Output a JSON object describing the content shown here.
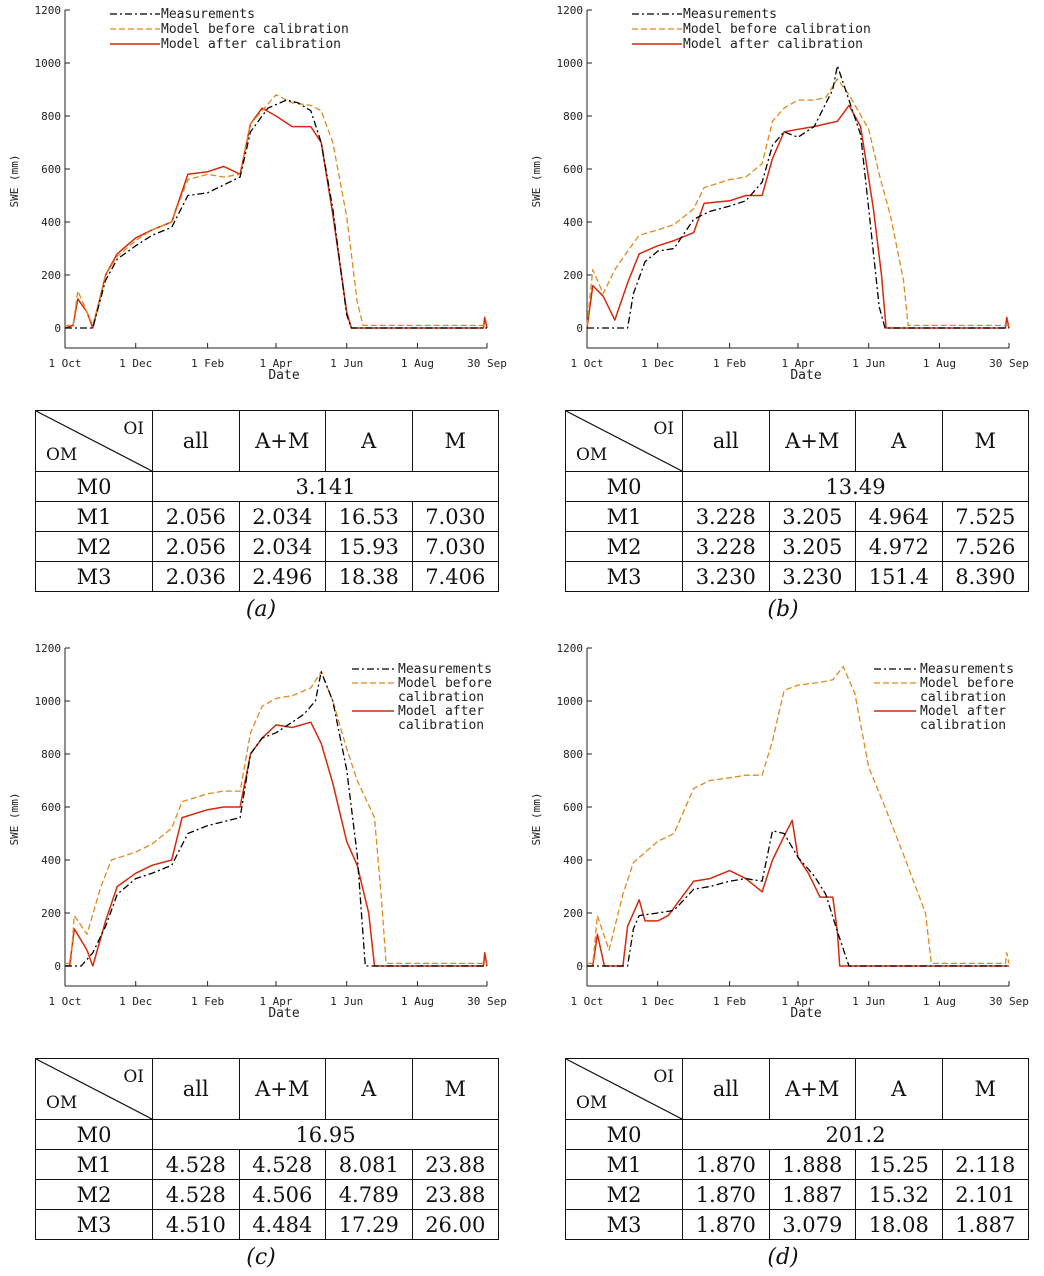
{
  "chart_data": [
    {
      "type": "line",
      "caption": "(a)",
      "xlabel": "Date",
      "ylabel": "SWE (mm)",
      "ylim": [
        0,
        1200
      ],
      "yticks": [
        0,
        200,
        400,
        600,
        800,
        1000,
        1200
      ],
      "xticks": [
        "1 Oct",
        "1 Dec",
        "1 Feb",
        "1 Apr",
        "1 Jun",
        "1 Aug",
        "30 Sep"
      ],
      "legend": "top",
      "series": [
        {
          "name": "Measurements",
          "style": "dashdot",
          "color": "#000000",
          "x": [
            "1 Oct",
            "10 Oct",
            "25 Oct",
            "5 Nov",
            "15 Nov",
            "1 Dec",
            "15 Dec",
            "1 Jan",
            "15 Jan",
            "1 Feb",
            "15 Feb",
            "1 Mar",
            "10 Mar",
            "25 Mar",
            "10 Apr",
            "20 Apr",
            "1 May",
            "10 May",
            "20 May",
            "1 Jun",
            "5 Jun",
            "15 Jun",
            "30 Sep"
          ],
          "y": [
            0,
            0,
            0,
            180,
            260,
            310,
            350,
            380,
            500,
            510,
            540,
            570,
            740,
            830,
            860,
            850,
            820,
            700,
            450,
            50,
            0,
            0,
            0
          ]
        },
        {
          "name": "Model before calibration",
          "style": "dashed",
          "color": "#e08a1e",
          "x": [
            "1 Oct",
            "8 Oct",
            "12 Oct",
            "20 Oct",
            "25 Oct",
            "5 Nov",
            "15 Nov",
            "1 Dec",
            "15 Dec",
            "1 Jan",
            "15 Jan",
            "1 Feb",
            "15 Feb",
            "1 Mar",
            "10 Mar",
            "20 Mar",
            "1 Apr",
            "15 Apr",
            "1 May",
            "10 May",
            "20 May",
            "1 Jun",
            "10 Jun",
            "15 Jun",
            "30 Sep"
          ],
          "y": [
            10,
            10,
            140,
            60,
            10,
            200,
            270,
            330,
            370,
            400,
            560,
            580,
            570,
            580,
            770,
            820,
            880,
            850,
            840,
            820,
            700,
            420,
            100,
            10,
            10
          ]
        },
        {
          "name": "Model after calibration",
          "style": "solid",
          "color": "#d42a0c",
          "x": [
            "1 Oct",
            "8 Oct",
            "12 Oct",
            "20 Oct",
            "25 Oct",
            "5 Nov",
            "15 Nov",
            "1 Dec",
            "15 Dec",
            "1 Jan",
            "15 Jan",
            "1 Feb",
            "15 Feb",
            "1 Mar",
            "10 Mar",
            "20 Mar",
            "1 Apr",
            "15 Apr",
            "1 May",
            "10 May",
            "20 May",
            "1 Jun",
            "5 Jun",
            "27 Sep",
            "28 Sep",
            "30 Sep"
          ],
          "y": [
            0,
            10,
            110,
            60,
            0,
            200,
            280,
            340,
            370,
            400,
            580,
            590,
            610,
            580,
            770,
            830,
            800,
            760,
            760,
            700,
            430,
            60,
            0,
            0,
            40,
            0
          ]
        }
      ]
    },
    {
      "type": "line",
      "caption": "(b)",
      "xlabel": "Date",
      "ylabel": "SWE (mm)",
      "ylim": [
        0,
        1200
      ],
      "yticks": [
        0,
        200,
        400,
        600,
        800,
        1000,
        1200
      ],
      "xticks": [
        "1 Oct",
        "1 Dec",
        "1 Feb",
        "1 Apr",
        "1 Jun",
        "1 Aug",
        "30 Sep"
      ],
      "legend": "top",
      "series": [
        {
          "name": "Measurements",
          "style": "dashdot",
          "color": "#000000",
          "x": [
            "1 Oct",
            "5 Nov",
            "10 Nov",
            "20 Nov",
            "1 Dec",
            "15 Dec",
            "1 Jan",
            "15 Jan",
            "1 Feb",
            "15 Feb",
            "1 Mar",
            "10 Mar",
            "20 Mar",
            "1 Apr",
            "15 Apr",
            "1 May",
            "5 May",
            "15 May",
            "25 May",
            "1 Jun",
            "10 Jun",
            "15 Jun",
            "30 Sep"
          ],
          "y": [
            0,
            0,
            130,
            250,
            290,
            300,
            410,
            440,
            460,
            480,
            550,
            690,
            740,
            720,
            760,
            900,
            990,
            860,
            730,
            450,
            80,
            0,
            0
          ]
        },
        {
          "name": "Model before calibration",
          "style": "dashed",
          "color": "#e08a1e",
          "x": [
            "1 Oct",
            "6 Oct",
            "15 Oct",
            "25 Oct",
            "5 Nov",
            "15 Nov",
            "1 Dec",
            "15 Dec",
            "1 Jan",
            "10 Jan",
            "1 Feb",
            "15 Feb",
            "1 Mar",
            "10 Mar",
            "20 Mar",
            "1 Apr",
            "15 Apr",
            "25 Apr",
            "5 May",
            "15 May",
            "1 Jun",
            "10 Jun",
            "20 Jun",
            "1 Jul",
            "5 Jul",
            "30 Sep"
          ],
          "y": [
            10,
            220,
            130,
            220,
            290,
            350,
            370,
            390,
            450,
            530,
            560,
            570,
            620,
            780,
            830,
            860,
            860,
            870,
            940,
            880,
            750,
            580,
            420,
            180,
            10,
            10
          ]
        },
        {
          "name": "Model after calibration",
          "style": "solid",
          "color": "#d42a0c",
          "x": [
            "1 Oct",
            "6 Oct",
            "15 Oct",
            "25 Oct",
            "5 Nov",
            "15 Nov",
            "1 Dec",
            "15 Dec",
            "1 Jan",
            "10 Jan",
            "1 Feb",
            "15 Feb",
            "1 Mar",
            "10 Mar",
            "20 Mar",
            "1 Apr",
            "15 Apr",
            "25 Apr",
            "5 May",
            "15 May",
            "25 May",
            "5 Jun",
            "12 Jun",
            "16 Jun",
            "27 Sep",
            "28 Sep",
            "30 Sep"
          ],
          "y": [
            0,
            160,
            120,
            30,
            170,
            280,
            310,
            330,
            360,
            470,
            480,
            500,
            500,
            640,
            740,
            750,
            760,
            770,
            780,
            840,
            760,
            450,
            200,
            0,
            0,
            40,
            0
          ]
        }
      ]
    },
    {
      "type": "line",
      "caption": "(c)",
      "xlabel": "Date",
      "ylabel": "SWE (mm)",
      "ylim": [
        0,
        1200
      ],
      "yticks": [
        0,
        200,
        400,
        600,
        800,
        1000,
        1200
      ],
      "xticks": [
        "1 Oct",
        "1 Dec",
        "1 Feb",
        "1 Apr",
        "1 Jun",
        "1 Aug",
        "30 Sep"
      ],
      "legend": "top-right",
      "series": [
        {
          "name": "Measurements",
          "style": "dashdot",
          "color": "#000000",
          "x": [
            "1 Oct",
            "15 Oct",
            "25 Oct",
            "5 Nov",
            "15 Nov",
            "1 Dec",
            "15 Dec",
            "1 Jan",
            "15 Jan",
            "1 Feb",
            "1 Mar",
            "10 Mar",
            "20 Mar",
            "1 Apr",
            "15 Apr",
            "25 Apr",
            "5 May",
            "10 May",
            "20 May",
            "1 Jun",
            "10 Jun",
            "17 Jun",
            "30 Sep"
          ],
          "y": [
            0,
            0,
            50,
            150,
            270,
            330,
            350,
            380,
            500,
            530,
            560,
            800,
            860,
            880,
            920,
            950,
            1000,
            1110,
            1000,
            740,
            420,
            0,
            0
          ]
        },
        {
          "name": "Model before calibration",
          "style": "dashed",
          "color": "#e08a1e",
          "x": [
            "1 Oct",
            "6 Oct",
            "9 Oct",
            "20 Oct",
            "1 Nov",
            "10 Nov",
            "1 Dec",
            "15 Dec",
            "1 Jan",
            "10 Jan",
            "1 Feb",
            "15 Feb",
            "1 Mar",
            "10 Mar",
            "20 Mar",
            "1 Apr",
            "15 Apr",
            "1 May",
            "10 May",
            "20 May",
            "1 Jun",
            "10 Jun",
            "25 Jun",
            "1 Jul",
            "5 Jul",
            "30 Sep"
          ],
          "y": [
            10,
            10,
            190,
            120,
            300,
            400,
            430,
            460,
            520,
            620,
            650,
            660,
            660,
            880,
            980,
            1010,
            1020,
            1050,
            1110,
            1000,
            820,
            700,
            560,
            250,
            10,
            10
          ]
        },
        {
          "name": "Model after calibration",
          "style": "solid",
          "color": "#d42a0c",
          "x": [
            "1 Oct",
            "5 Oct",
            "9 Oct",
            "20 Oct",
            "25 Oct",
            "5 Nov",
            "15 Nov",
            "1 Dec",
            "15 Dec",
            "1 Jan",
            "10 Jan",
            "1 Feb",
            "15 Feb",
            "1 Mar",
            "10 Mar",
            "20 Mar",
            "1 Apr",
            "15 Apr",
            "1 May",
            "10 May",
            "20 May",
            "1 Jun",
            "10 Jun",
            "20 Jun",
            "25 Jun",
            "27 Sep",
            "28 Sep",
            "30 Sep"
          ],
          "y": [
            0,
            0,
            140,
            60,
            0,
            170,
            300,
            350,
            380,
            400,
            560,
            590,
            600,
            600,
            800,
            860,
            910,
            900,
            920,
            840,
            690,
            470,
            380,
            200,
            0,
            0,
            50,
            0
          ]
        }
      ]
    },
    {
      "type": "line",
      "caption": "(d)",
      "xlabel": "Date",
      "ylabel": "SWE (mm)",
      "ylim": [
        0,
        1200
      ],
      "yticks": [
        0,
        200,
        400,
        600,
        800,
        1000,
        1200
      ],
      "xticks": [
        "1 Oct",
        "1 Dec",
        "1 Feb",
        "1 Apr",
        "1 Jun",
        "1 Aug",
        "30 Sep"
      ],
      "legend": "top-right",
      "series": [
        {
          "name": "Measurements",
          "style": "dashdot",
          "color": "#000000",
          "x": [
            "1 Oct",
            "5 Nov",
            "10 Nov",
            "15 Nov",
            "1 Dec",
            "15 Dec",
            "1 Jan",
            "15 Jan",
            "1 Feb",
            "15 Feb",
            "1 Mar",
            "10 Mar",
            "20 Mar",
            "1 Apr",
            "15 Apr",
            "25 Apr",
            "5 May",
            "15 May",
            "30 Sep"
          ],
          "y": [
            0,
            0,
            140,
            190,
            200,
            210,
            290,
            300,
            320,
            330,
            320,
            510,
            500,
            410,
            340,
            270,
            130,
            0,
            0
          ]
        },
        {
          "name": "Model before calibration",
          "style": "dashed",
          "color": "#e08a1e",
          "x": [
            "1 Oct",
            "6 Oct",
            "10 Oct",
            "20 Oct",
            "1 Nov",
            "10 Nov",
            "1 Dec",
            "15 Dec",
            "1 Jan",
            "15 Jan",
            "1 Feb",
            "15 Feb",
            "1 Mar",
            "10 Mar",
            "20 Mar",
            "1 Apr",
            "20 Apr",
            "1 May",
            "10 May",
            "20 May",
            "1 Jun",
            "15 Jun",
            "1 Jul",
            "20 Jul",
            "25 Jul",
            "27 Sep",
            "28 Sep",
            "30 Sep"
          ],
          "y": [
            10,
            10,
            190,
            60,
            270,
            390,
            470,
            500,
            670,
            700,
            710,
            720,
            720,
            850,
            1040,
            1060,
            1070,
            1080,
            1130,
            1030,
            750,
            600,
            420,
            200,
            10,
            10,
            50,
            10
          ]
        },
        {
          "name": "Model after calibration",
          "style": "solid",
          "color": "#d42a0c",
          "x": [
            "1 Oct",
            "6 Oct",
            "10 Oct",
            "16 Oct",
            "1 Nov",
            "5 Nov",
            "15 Nov",
            "20 Nov",
            "1 Dec",
            "10 Dec",
            "1 Jan",
            "15 Jan",
            "1 Feb",
            "15 Feb",
            "1 Mar",
            "10 Mar",
            "20 Mar",
            "27 Mar",
            "1 Apr",
            "10 Apr",
            "20 Apr",
            "1 May",
            "5 May",
            "7 May",
            "30 Sep"
          ],
          "y": [
            0,
            0,
            120,
            0,
            0,
            150,
            250,
            170,
            170,
            190,
            320,
            330,
            360,
            330,
            280,
            400,
            490,
            550,
            410,
            350,
            260,
            260,
            130,
            0,
            0
          ]
        }
      ]
    }
  ],
  "tables": [
    {
      "header": {
        "oi": "OI",
        "om": "OM",
        "cols": [
          "all",
          "A+M",
          "A",
          "M"
        ]
      },
      "m0": {
        "label": "M0",
        "value": "3.141"
      },
      "rows": [
        {
          "label": "M1",
          "values": [
            "2.056",
            "2.034",
            "16.53",
            "7.030"
          ]
        },
        {
          "label": "M2",
          "values": [
            "2.056",
            "2.034",
            "15.93",
            "7.030"
          ]
        },
        {
          "label": "M3",
          "values": [
            "2.036",
            "2.496",
            "18.38",
            "7.406"
          ]
        }
      ]
    },
    {
      "header": {
        "oi": "OI",
        "om": "OM",
        "cols": [
          "all",
          "A+M",
          "A",
          "M"
        ]
      },
      "m0": {
        "label": "M0",
        "value": "13.49"
      },
      "rows": [
        {
          "label": "M1",
          "values": [
            "3.228",
            "3.205",
            "4.964",
            "7.525"
          ]
        },
        {
          "label": "M2",
          "values": [
            "3.228",
            "3.205",
            "4.972",
            "7.526"
          ]
        },
        {
          "label": "M3",
          "values": [
            "3.230",
            "3.230",
            "151.4",
            "8.390"
          ]
        }
      ]
    },
    {
      "header": {
        "oi": "OI",
        "om": "OM",
        "cols": [
          "all",
          "A+M",
          "A",
          "M"
        ]
      },
      "m0": {
        "label": "M0",
        "value": "16.95"
      },
      "rows": [
        {
          "label": "M1",
          "values": [
            "4.528",
            "4.528",
            "8.081",
            "23.88"
          ]
        },
        {
          "label": "M2",
          "values": [
            "4.528",
            "4.506",
            "4.789",
            "23.88"
          ]
        },
        {
          "label": "M3",
          "values": [
            "4.510",
            "4.484",
            "17.29",
            "26.00"
          ]
        }
      ]
    },
    {
      "header": {
        "oi": "OI",
        "om": "OM",
        "cols": [
          "all",
          "A+M",
          "A",
          "M"
        ]
      },
      "m0": {
        "label": "M0",
        "value": "201.2"
      },
      "rows": [
        {
          "label": "M1",
          "values": [
            "1.870",
            "1.888",
            "15.25",
            "2.118"
          ]
        },
        {
          "label": "M2",
          "values": [
            "1.870",
            "1.887",
            "15.32",
            "2.101"
          ]
        },
        {
          "label": "M3",
          "values": [
            "1.870",
            "3.079",
            "18.08",
            "1.887"
          ]
        }
      ]
    }
  ]
}
